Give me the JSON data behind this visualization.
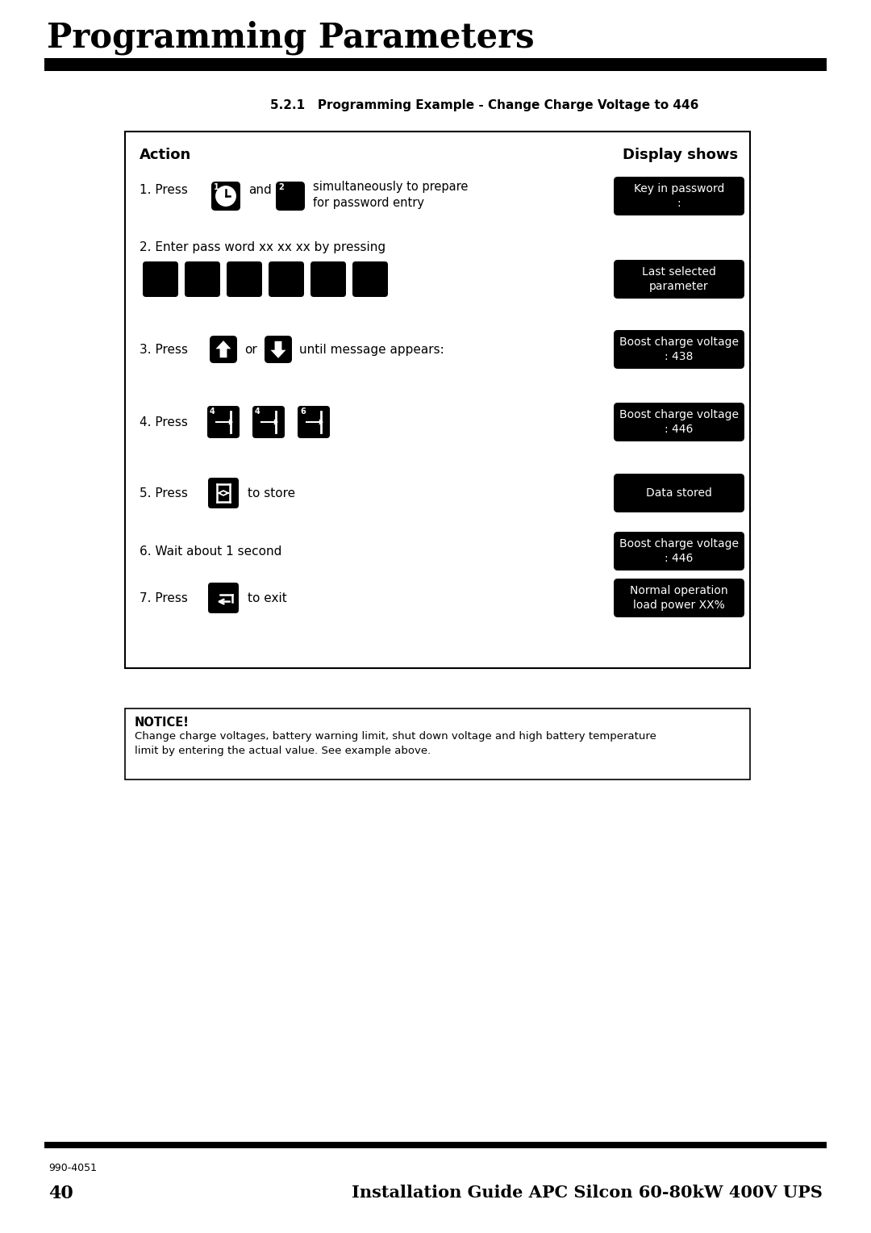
{
  "title": "Programming Parameters",
  "subtitle": "5.2.1   Programming Example - Change Charge Voltage to 446",
  "action_header": "Action",
  "display_header": "Display shows",
  "display_labels": [
    "Key in password\n:",
    "Last selected\nparameter",
    "Boost charge voltage\n: 438",
    "Boost charge voltage\n: 446",
    "Data stored",
    "Boost charge voltage\n: 446",
    "Normal operation\nload power XX%"
  ],
  "notice_title": "NOTICE!",
  "notice_text": "Change charge voltages, battery warning limit, shut down voltage and high battery temperature\nlimit by entering the actual value. See example above.",
  "footer_left": "990-4051",
  "footer_page": "40",
  "footer_right": "Installation Guide APC Silcon 60-80kW 400V UPS",
  "bg_color": "#ffffff",
  "text_color": "#000000"
}
